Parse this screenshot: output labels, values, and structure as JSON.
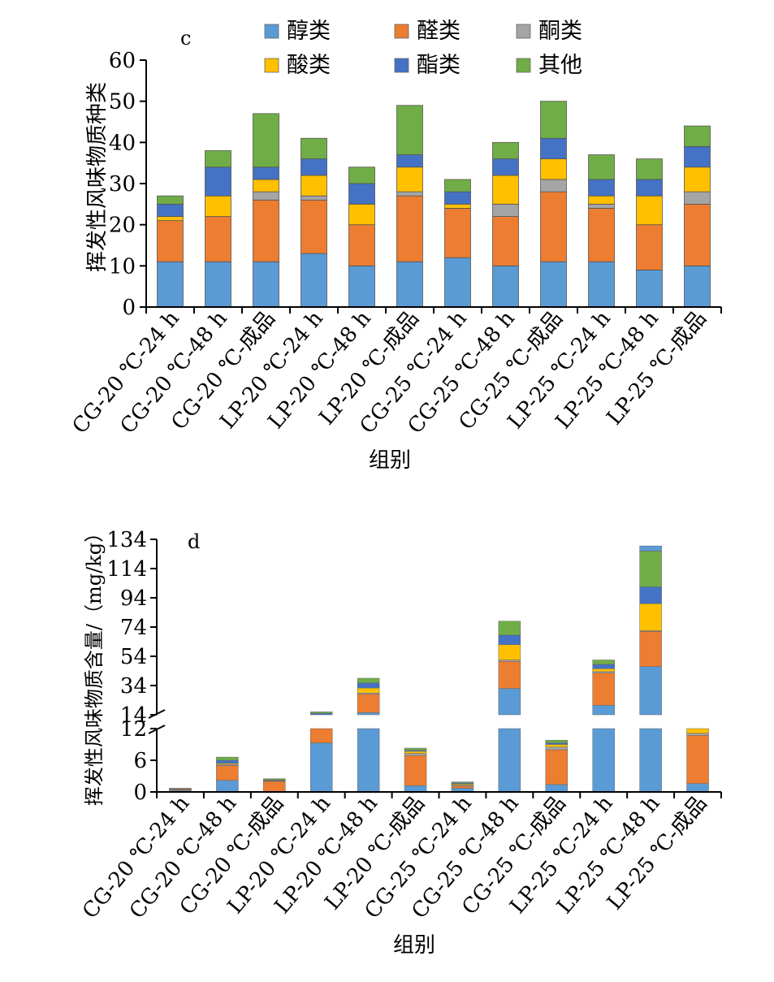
{
  "chart_data": [
    {
      "panel": "c",
      "type": "bar",
      "stacked": true,
      "ylabel": "挥发性风味物质种类",
      "xlabel": "组别",
      "ylim": [
        0,
        60
      ],
      "yticks": [
        0,
        10,
        20,
        30,
        40,
        50,
        60
      ],
      "categories": [
        "CG-20 ℃-24 h",
        "CG-20 ℃-48 h",
        "CG-20 ℃-成品",
        "LP-20 ℃-24 h",
        "LP-20 ℃-48 h",
        "LP-20 ℃-成品",
        "CG-25 ℃-24 h",
        "CG-25 ℃-48 h",
        "CG-25 ℃-成品",
        "LP-25 ℃-24 h",
        "LP-25 ℃-48 h",
        "LP-25 ℃-成品"
      ],
      "series": [
        {
          "name": "醇类",
          "color": "#5b9bd5",
          "values": [
            11,
            11,
            11,
            13,
            10,
            11,
            12,
            10,
            11,
            11,
            9,
            10
          ]
        },
        {
          "name": "醛类",
          "color": "#ed7d31",
          "values": [
            10,
            11,
            15,
            13,
            10,
            16,
            12,
            12,
            17,
            13,
            11,
            15
          ]
        },
        {
          "name": "酮类",
          "color": "#a5a5a5",
          "values": [
            0,
            0,
            2,
            1,
            0,
            1,
            0,
            3,
            3,
            1,
            0,
            3
          ]
        },
        {
          "name": "酸类",
          "color": "#ffc000",
          "values": [
            1,
            5,
            3,
            5,
            5,
            6,
            1,
            7,
            5,
            2,
            7,
            6
          ]
        },
        {
          "name": "酯类",
          "color": "#4472c4",
          "values": [
            3,
            7,
            3,
            4,
            5,
            3,
            3,
            4,
            5,
            4,
            4,
            5
          ]
        },
        {
          "name": "其他",
          "color": "#70ad47",
          "values": [
            2,
            4,
            13,
            5,
            4,
            12,
            3,
            4,
            9,
            6,
            5,
            5
          ]
        }
      ]
    },
    {
      "panel": "d",
      "type": "bar",
      "stacked": true,
      "broken_axis": true,
      "ylabel": "挥发性风味物质含量/（mg/kg）",
      "xlabel": "组别",
      "ylim": [
        0,
        134
      ],
      "axis_break": [
        12,
        14
      ],
      "yticks_lower": [
        0,
        6,
        12
      ],
      "yticks_upper": [
        14,
        34,
        54,
        74,
        94,
        114,
        134
      ],
      "categories": [
        "CG-20 ℃-24 h",
        "CG-20 ℃-48 h",
        "CG-20 ℃-成品",
        "LP-20 ℃-24 h",
        "LP-20 ℃-48 h",
        "LP-20 ℃-成品",
        "CG-25 ℃-24 h",
        "CG-25 ℃-48 h",
        "CG-25 ℃-成品",
        "LP-25 ℃-24 h",
        "LP-25 ℃-48 h",
        "LP-25 ℃-成品"
      ],
      "series": [
        {
          "name": "醇类",
          "color": "#5b9bd5",
          "values": [
            0.3,
            2.2,
            0.1,
            9.3,
            15.5,
            1.2,
            0.7,
            32.0,
            1.4,
            20.5,
            47.0,
            1.6
          ]
        },
        {
          "name": "醛类",
          "color": "#ed7d31",
          "values": [
            0.2,
            2.8,
            1.9,
            3.2,
            12.5,
            5.7,
            0.4,
            18.5,
            6.6,
            22.0,
            24.0,
            9.1
          ]
        },
        {
          "name": "酮类",
          "color": "#a5a5a5",
          "values": [
            0.05,
            0.2,
            0.1,
            0.6,
            0.8,
            0.4,
            0.2,
            1.0,
            0.5,
            1.0,
            0.5,
            0.4
          ]
        },
        {
          "name": "酸类",
          "color": "#ffc000",
          "values": [
            0.05,
            0.2,
            0.1,
            0.7,
            3.5,
            0.4,
            0.2,
            10.5,
            0.5,
            2.0,
            18.5,
            1.1
          ]
        },
        {
          "name": "酯类",
          "color": "#4472c4",
          "values": [
            0.05,
            0.6,
            0.1,
            1.2,
            3.5,
            0.2,
            0.2,
            6.5,
            0.3,
            3.0,
            11.5,
            0.3
          ]
        },
        {
          "name": "其他",
          "color": "#70ad47",
          "values": [
            0.05,
            0.6,
            0.2,
            1.0,
            3.2,
            0.4,
            0.2,
            9.5,
            0.5,
            3.0,
            24.5,
            0.3
          ]
        },
        {
          "name": "醇类(顶部)",
          "legend": false,
          "color": "#5b9bd5",
          "values": [
            0,
            0,
            0,
            0,
            0,
            0,
            0,
            0,
            0,
            0,
            3.5,
            0
          ]
        }
      ]
    }
  ]
}
